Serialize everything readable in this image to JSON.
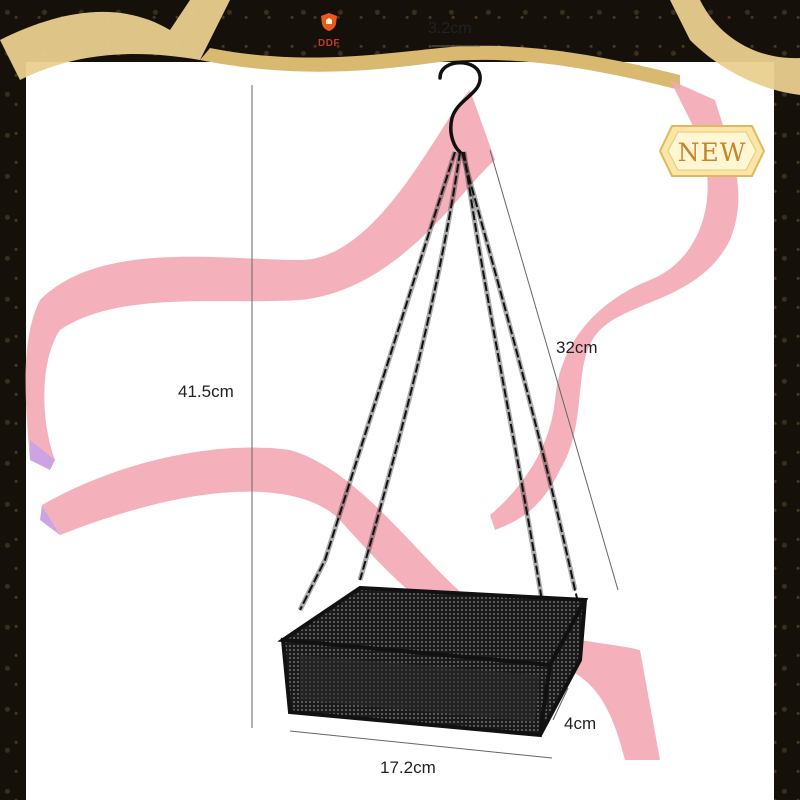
{
  "brand": {
    "logo_text": "DDF",
    "logo_icon": "shield-crest-icon",
    "brand_color": "#c0392b"
  },
  "badge": {
    "label": "NEW",
    "text_color": "#c9842a",
    "fill_color": "#fbe6a8"
  },
  "product": {
    "name_icon": "hanging-bird-feeder-tray",
    "color": "#111111"
  },
  "dimensions": {
    "hook": "3.2cm",
    "total_height": "41.5cm",
    "chain_length": "32cm",
    "tray_width": "17.2cm",
    "tray_depth": "4cm"
  },
  "colors": {
    "ribbon": "#f3a9b4",
    "ribbon_shade": "#c89ae0",
    "gold_ribbon": "#e9cf8e",
    "frame": "#151009"
  }
}
